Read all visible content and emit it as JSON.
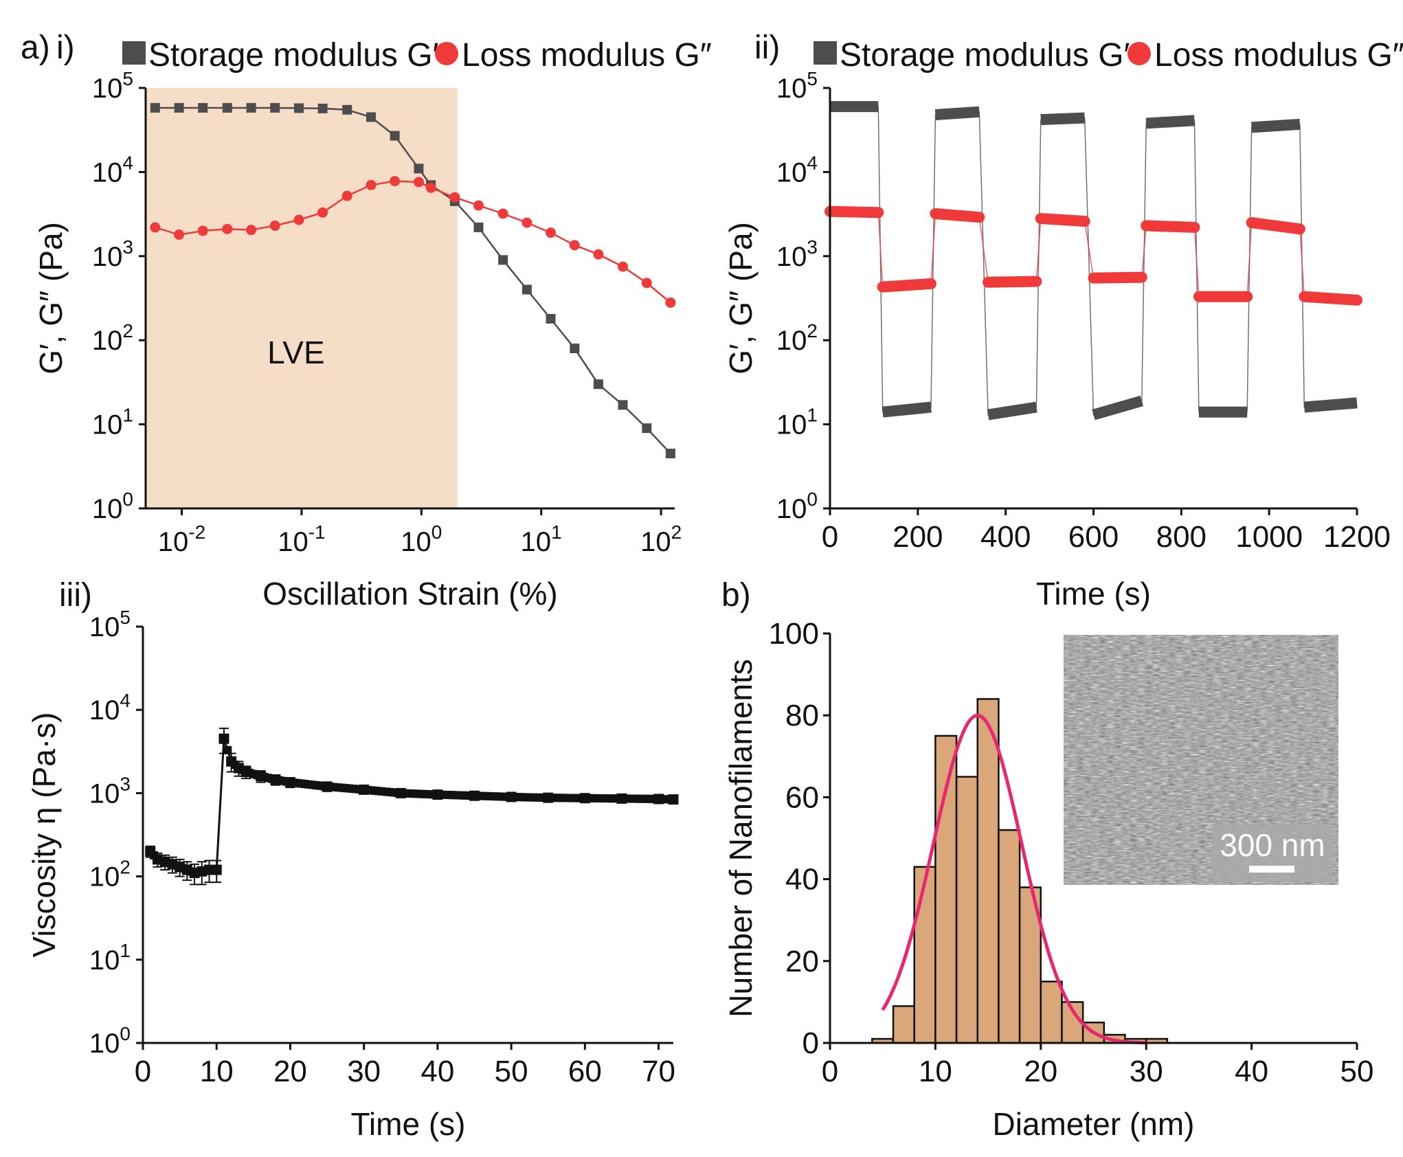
{
  "figure_labels": {
    "a": "a)",
    "b": "b)",
    "i": "i)",
    "ii": "ii)",
    "iii": "iii)"
  },
  "colors": {
    "storage": "#4d4d4d",
    "loss": "#f03a3a",
    "lve_band": "#f6ddc8",
    "bar_fill": "#d9a77a",
    "fit_line": "#e8286e",
    "axis": "#111111"
  },
  "chart_data": [
    {
      "id": "panel_i",
      "type": "line",
      "title": "",
      "xlabel": "Oscillation Strain (%)",
      "ylabel": "G′, G″ (Pa)",
      "xscale": "log",
      "yscale": "log",
      "xlim": [
        0.005,
        130
      ],
      "ylim": [
        1,
        100000
      ],
      "xticks": [
        {
          "value": 0.01,
          "base": "10",
          "exp": "-2"
        },
        {
          "value": 0.1,
          "base": "10",
          "exp": "-1"
        },
        {
          "value": 1,
          "base": "10",
          "exp": "0"
        },
        {
          "value": 10,
          "base": "10",
          "exp": "1"
        },
        {
          "value": 100,
          "base": "10",
          "exp": "2"
        }
      ],
      "yticks": [
        {
          "value": 1,
          "base": "10",
          "exp": "0"
        },
        {
          "value": 10,
          "base": "10",
          "exp": "1"
        },
        {
          "value": 100,
          "base": "10",
          "exp": "2"
        },
        {
          "value": 1000,
          "base": "10",
          "exp": "3"
        },
        {
          "value": 10000,
          "base": "10",
          "exp": "4"
        },
        {
          "value": 100000,
          "base": "10",
          "exp": "5"
        }
      ],
      "shaded_region": {
        "x_from": 0.005,
        "x_to": 2.0,
        "label": "LVE"
      },
      "legend": [
        {
          "label": "Storage modulus G′",
          "marker": "square",
          "series": 0
        },
        {
          "label": "Loss modulus G″",
          "marker": "circle",
          "series": 1
        }
      ],
      "series": [
        {
          "name": "Storage modulus G′",
          "marker": "square",
          "x": [
            0.006,
            0.0095,
            0.015,
            0.024,
            0.038,
            0.06,
            0.095,
            0.15,
            0.24,
            0.38,
            0.6,
            0.95,
            1.2,
            1.9,
            3.0,
            4.8,
            7.6,
            12,
            19,
            30,
            48,
            76,
            120
          ],
          "values": [
            58000,
            58000,
            58000,
            58000,
            58000,
            58000,
            57500,
            57000,
            55000,
            45000,
            27000,
            11000,
            7000,
            4500,
            2200,
            900,
            400,
            180,
            80,
            30,
            17,
            9,
            4.5
          ]
        },
        {
          "name": "Loss modulus G″",
          "marker": "circle",
          "x": [
            0.006,
            0.0095,
            0.015,
            0.024,
            0.038,
            0.06,
            0.095,
            0.15,
            0.24,
            0.38,
            0.6,
            0.95,
            1.2,
            1.9,
            3.0,
            4.8,
            7.6,
            12,
            19,
            30,
            48,
            76,
            120
          ],
          "values": [
            2200,
            1800,
            2000,
            2100,
            2050,
            2300,
            2700,
            3300,
            5200,
            7000,
            7800,
            7600,
            6500,
            5000,
            4000,
            3200,
            2500,
            1900,
            1350,
            1050,
            750,
            480,
            280
          ]
        }
      ]
    },
    {
      "id": "panel_ii",
      "type": "line",
      "title": "",
      "xlabel": "Time (s)",
      "ylabel": "G′, G″ (Pa)",
      "xscale": "linear",
      "yscale": "log",
      "xlim": [
        0,
        1200
      ],
      "ylim": [
        1,
        100000
      ],
      "xticks": [
        0,
        200,
        400,
        600,
        800,
        1000,
        1200
      ],
      "yticks": [
        {
          "value": 1,
          "base": "10",
          "exp": "0"
        },
        {
          "value": 10,
          "base": "10",
          "exp": "1"
        },
        {
          "value": 100,
          "base": "10",
          "exp": "2"
        },
        {
          "value": 1000,
          "base": "10",
          "exp": "3"
        },
        {
          "value": 10000,
          "base": "10",
          "exp": "4"
        },
        {
          "value": 100000,
          "base": "10",
          "exp": "5"
        }
      ],
      "legend": [
        {
          "label": "Storage modulus G′",
          "marker": "square",
          "series": 0
        },
        {
          "label": "Loss modulus G″",
          "marker": "circle",
          "series": 1
        }
      ],
      "series": [
        {
          "name": "Storage modulus G′",
          "marker": "square",
          "segments": [
            {
              "x_from": 0,
              "x_to": 110,
              "v_from": 60000,
              "v_to": 60000
            },
            {
              "x_from": 120,
              "x_to": 230,
              "v_from": 14,
              "v_to": 16
            },
            {
              "x_from": 240,
              "x_to": 340,
              "v_from": 48000,
              "v_to": 52000
            },
            {
              "x_from": 360,
              "x_to": 470,
              "v_from": 13,
              "v_to": 16
            },
            {
              "x_from": 480,
              "x_to": 580,
              "v_from": 42000,
              "v_to": 44000
            },
            {
              "x_from": 600,
              "x_to": 710,
              "v_from": 13,
              "v_to": 19
            },
            {
              "x_from": 720,
              "x_to": 830,
              "v_from": 38000,
              "v_to": 41000
            },
            {
              "x_from": 840,
              "x_to": 950,
              "v_from": 14,
              "v_to": 14
            },
            {
              "x_from": 960,
              "x_to": 1070,
              "v_from": 34000,
              "v_to": 37000
            },
            {
              "x_from": 1080,
              "x_to": 1200,
              "v_from": 16,
              "v_to": 18
            }
          ]
        },
        {
          "name": "Loss modulus G″",
          "marker": "circle",
          "segments": [
            {
              "x_from": 0,
              "x_to": 110,
              "v_from": 3400,
              "v_to": 3300
            },
            {
              "x_from": 120,
              "x_to": 230,
              "v_from": 430,
              "v_to": 470
            },
            {
              "x_from": 240,
              "x_to": 340,
              "v_from": 3200,
              "v_to": 2900
            },
            {
              "x_from": 360,
              "x_to": 470,
              "v_from": 490,
              "v_to": 500
            },
            {
              "x_from": 480,
              "x_to": 580,
              "v_from": 2800,
              "v_to": 2600
            },
            {
              "x_from": 600,
              "x_to": 710,
              "v_from": 550,
              "v_to": 560
            },
            {
              "x_from": 720,
              "x_to": 830,
              "v_from": 2300,
              "v_to": 2200
            },
            {
              "x_from": 840,
              "x_to": 950,
              "v_from": 330,
              "v_to": 330
            },
            {
              "x_from": 960,
              "x_to": 1070,
              "v_from": 2500,
              "v_to": 2100
            },
            {
              "x_from": 1080,
              "x_to": 1200,
              "v_from": 330,
              "v_to": 300
            }
          ]
        }
      ]
    },
    {
      "id": "panel_iii",
      "type": "line",
      "title": "",
      "xlabel": "Time (s)",
      "ylabel": "Viscosity η (Pa·s)",
      "xscale": "linear",
      "yscale": "log",
      "xlim": [
        0,
        72
      ],
      "ylim": [
        1,
        100000
      ],
      "xticks": [
        0,
        10,
        20,
        30,
        40,
        50,
        60,
        70
      ],
      "yticks": [
        {
          "value": 1,
          "base": "10",
          "exp": "0"
        },
        {
          "value": 10,
          "base": "10",
          "exp": "1"
        },
        {
          "value": 100,
          "base": "10",
          "exp": "2"
        },
        {
          "value": 1000,
          "base": "10",
          "exp": "3"
        },
        {
          "value": 10000,
          "base": "10",
          "exp": "4"
        },
        {
          "value": 100000,
          "base": "10",
          "exp": "5"
        }
      ],
      "series": [
        {
          "name": "Viscosity η",
          "marker": "square",
          "x": [
            1,
            2,
            3,
            4,
            5,
            6,
            7,
            8,
            9,
            10,
            11,
            12,
            13,
            14,
            16,
            18,
            20,
            25,
            30,
            35,
            40,
            45,
            50,
            55,
            60,
            65,
            70,
            72
          ],
          "values": [
            200,
            160,
            150,
            140,
            130,
            120,
            110,
            115,
            120,
            120,
            4500,
            2400,
            2000,
            1800,
            1600,
            1450,
            1350,
            1200,
            1100,
            1000,
            960,
            930,
            900,
            880,
            870,
            860,
            850,
            840
          ],
          "error": [
            30,
            30,
            30,
            30,
            30,
            30,
            30,
            35,
            35,
            35,
            1500,
            600,
            400,
            300,
            250,
            200,
            180,
            150,
            120,
            100,
            90,
            90,
            90,
            90,
            90,
            90,
            90,
            90
          ]
        }
      ]
    },
    {
      "id": "panel_b",
      "type": "bar",
      "title": "",
      "xlabel": "Diameter (nm)",
      "ylabel": "Number of Nanofilaments",
      "xlim": [
        0,
        50
      ],
      "ylim": [
        0,
        100
      ],
      "xticks": [
        0,
        10,
        20,
        30,
        40,
        50
      ],
      "yticks": [
        0,
        20,
        40,
        60,
        80,
        100
      ],
      "bin_width": 2,
      "bin_starts": [
        4,
        6,
        8,
        10,
        12,
        14,
        16,
        18,
        20,
        22,
        24,
        26,
        28,
        30
      ],
      "values": [
        1,
        9,
        43,
        75,
        65,
        84,
        52,
        38,
        15,
        10,
        5,
        2,
        1,
        1
      ],
      "fit": {
        "type": "gaussian",
        "mean": 14,
        "sigma": 4.2,
        "amplitude": 80,
        "x_from": 5,
        "x_to": 30
      },
      "inset": {
        "type": "micrograph",
        "scale_bar_label": "300 nm"
      }
    }
  ]
}
